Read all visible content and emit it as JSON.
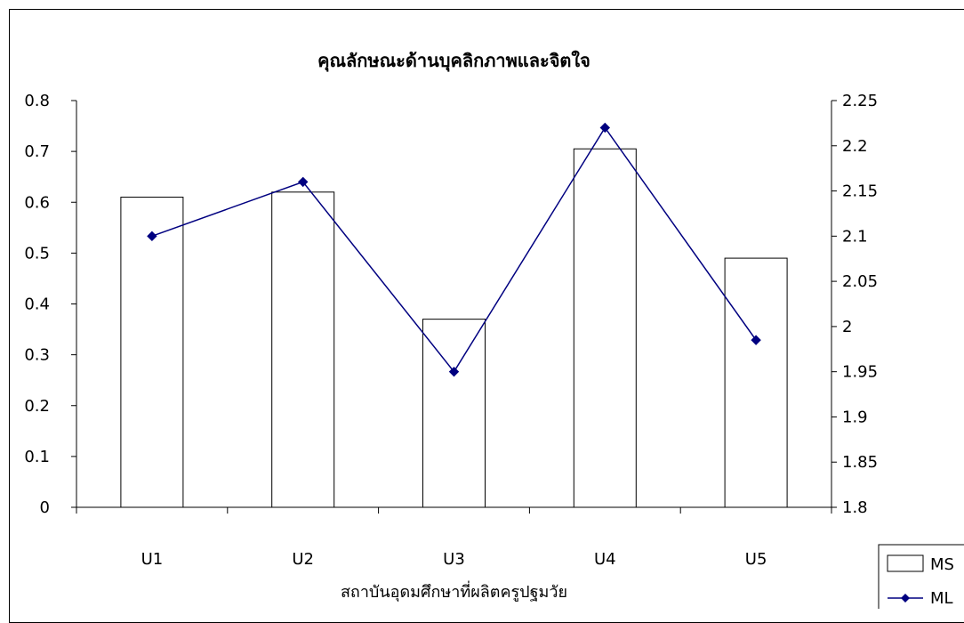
{
  "chart_data": {
    "type": "bar",
    "title": "คุณลักษณะด้านบุคลิกภาพและจิตใจ",
    "xlabel": "สถาบันอุดมศึกษาที่ผลิตครูปฐมวัย",
    "ylabel": "",
    "categories": [
      "U1",
      "U2",
      "U3",
      "U4",
      "U5"
    ],
    "series": [
      {
        "name": "MS",
        "type": "bar",
        "axis": "left",
        "values": [
          0.61,
          0.62,
          0.37,
          0.705,
          0.49
        ]
      },
      {
        "name": "ML",
        "type": "line",
        "axis": "right",
        "values": [
          2.1,
          2.16,
          1.95,
          2.22,
          1.985
        ],
        "color": "#000080"
      }
    ],
    "ylim": [
      0,
      0.8
    ],
    "y_ticks": [
      "0",
      "0.1",
      "0.2",
      "0.3",
      "0.4",
      "0.5",
      "0.6",
      "0.7",
      "0.8"
    ],
    "y2lim": [
      1.8,
      2.25
    ],
    "y2_ticks": [
      "1.8",
      "1.85",
      "1.9",
      "1.95",
      "2",
      "2.05",
      "2.1",
      "2.15",
      "2.2",
      "2.25"
    ],
    "grid": false,
    "legend": "bottom-right"
  }
}
